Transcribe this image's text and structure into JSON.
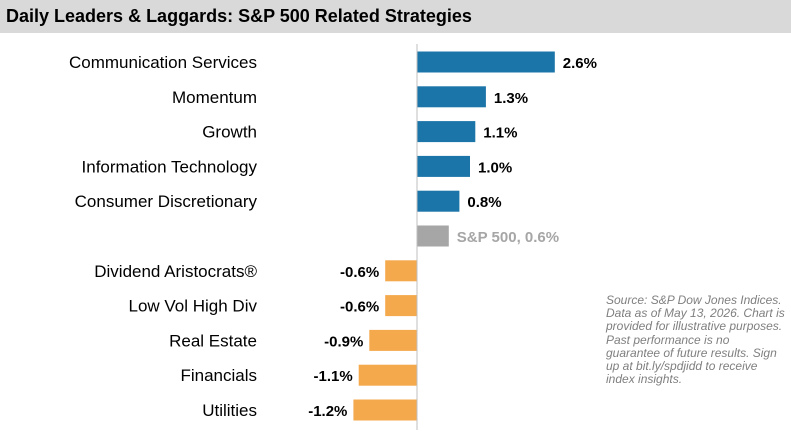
{
  "title": "Daily Leaders & Laggards: S&P 500 Related Strategies",
  "source_note": "Source: S&P Dow Jones Indices. Data as of May 13, 2026. Chart is provided for illustrative purposes. Past performance is no guarantee of future results. Sign up at bit.ly/spdjidd to receive index insights.",
  "colors": {
    "leader": "#1b75a8",
    "benchmark": "#a6a6a6",
    "laggard": "#f4a94c"
  },
  "chart_data": {
    "type": "bar",
    "orientation": "horizontal",
    "title": "Daily Leaders & Laggards: S&P 500 Related Strategies",
    "unit": "%",
    "categories": [
      "Communication Services",
      "Momentum",
      "Growth",
      "Information Technology",
      "Consumer Discretionary",
      "",
      "Dividend Aristocrats®",
      "Low Vol High Div",
      "Real Estate",
      "Financials",
      "Utilities"
    ],
    "values": [
      2.6,
      1.3,
      1.1,
      1.0,
      0.8,
      0.6,
      -0.6,
      -0.6,
      -0.9,
      -1.1,
      -1.2
    ],
    "data_labels": [
      "2.6%",
      "1.3%",
      "1.1%",
      "1.0%",
      "0.8%",
      "S&P 500, 0.6%",
      "-0.6%",
      "-0.6%",
      "-0.9%",
      "-1.1%",
      "-1.2%"
    ],
    "bar_groups": [
      "leader",
      "leader",
      "leader",
      "leader",
      "leader",
      "benchmark",
      "laggard",
      "laggard",
      "laggard",
      "laggard",
      "laggard"
    ],
    "grid": false,
    "legend": "none"
  }
}
